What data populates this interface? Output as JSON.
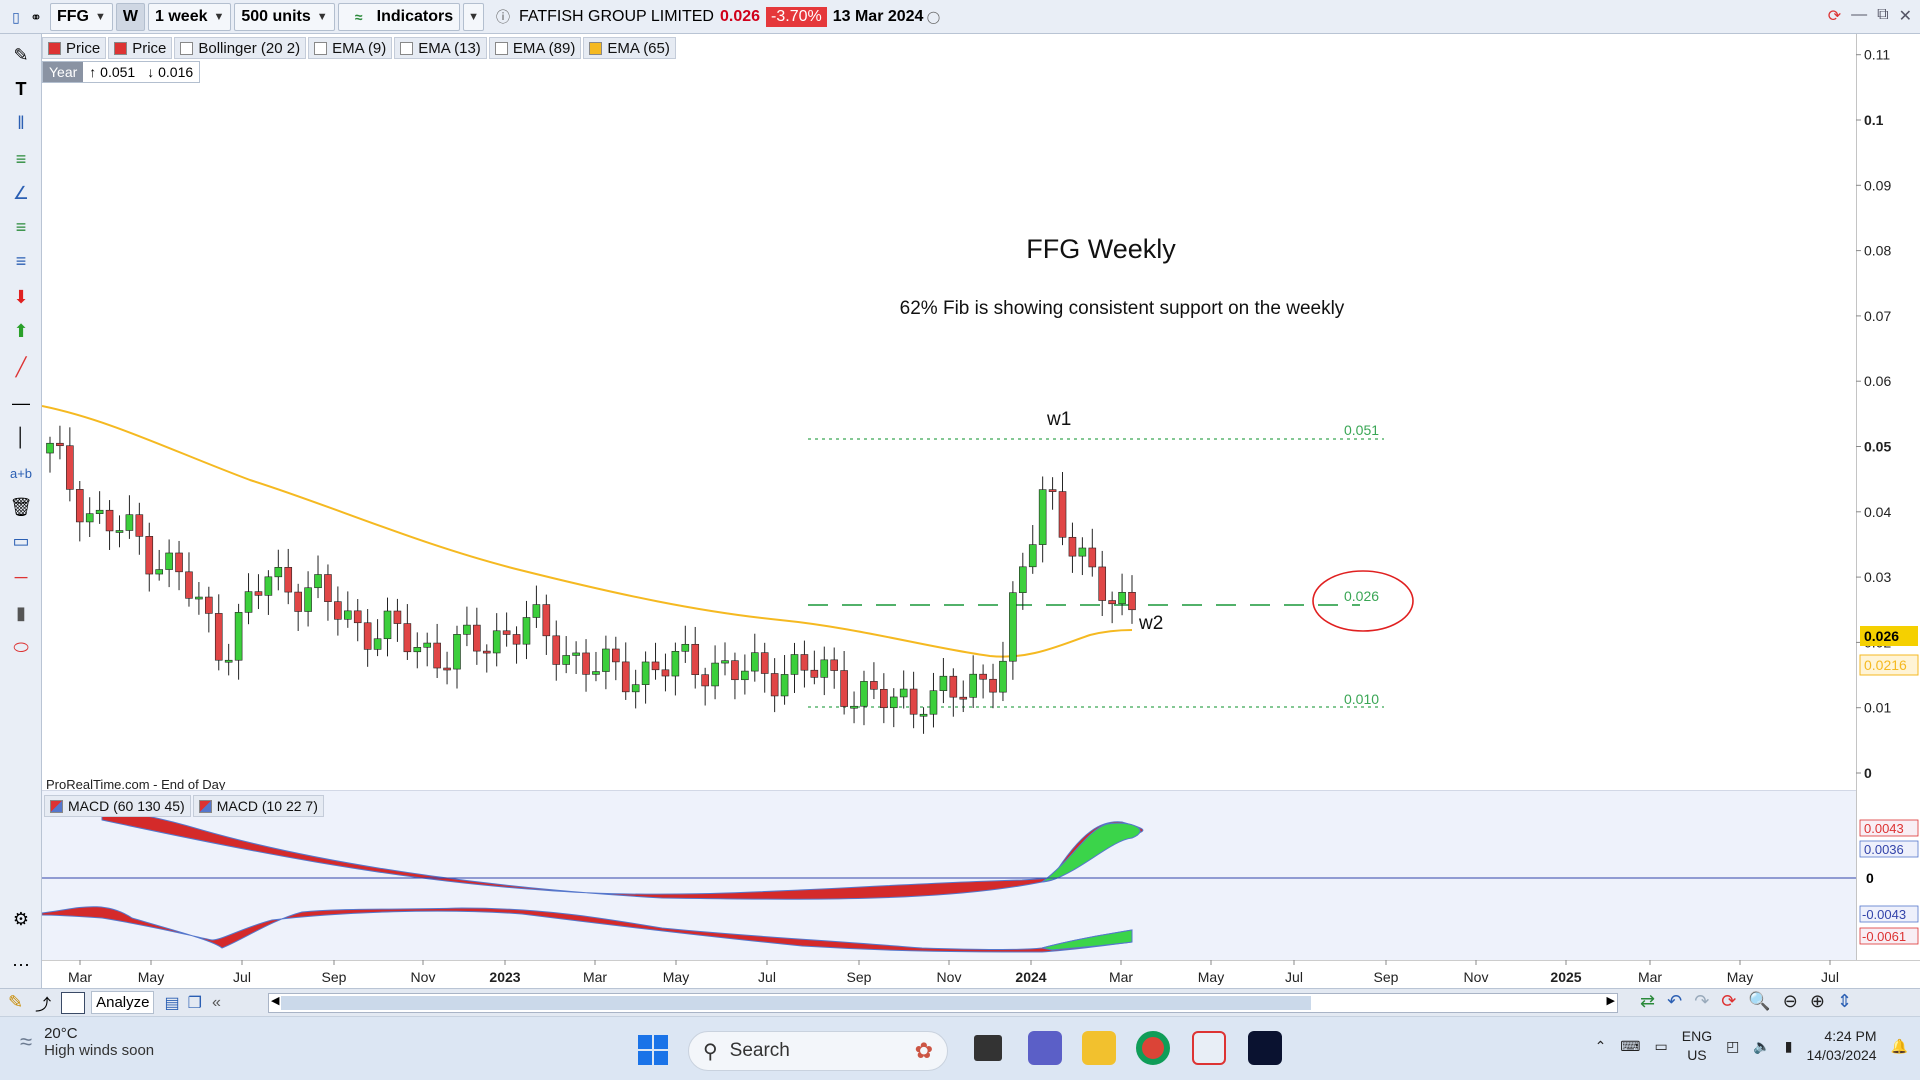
{
  "toolbar": {
    "symbol": "FFG",
    "period_letter": "W",
    "timeframe": "1 week",
    "units": "500 units",
    "indicators_label": "Indicators",
    "instrument_name": "FATFISH GROUP LIMITED",
    "last_price": "0.026",
    "change_pct": "-3.70%",
    "date": "13 Mar 2024"
  },
  "legend": {
    "items": [
      "Price",
      "Price",
      "Bollinger (20 2)",
      "EMA (9)",
      "EMA (13)",
      "EMA (89)",
      "EMA (65)"
    ],
    "colors": [
      "#d33",
      "#d33",
      "#ffffff",
      "#ffffff",
      "#ffffff",
      "#ffffff",
      "#f5b921"
    ]
  },
  "year_box": {
    "label": "Year",
    "high": "↑ 0.051",
    "low": "↓ 0.016"
  },
  "annotations": {
    "title": "FFG Weekly",
    "subtitle": "62% Fib is showing consistent support on the weekly",
    "w1": "w1",
    "w2": "w2",
    "fib_high": "0.051",
    "fib_mid": "0.026",
    "fib_low": "0.010",
    "source": "ProRealTime.com - End of Day"
  },
  "price_axis": {
    "ticks": [
      "0.11",
      "0.1",
      "0.09",
      "0.08",
      "0.07",
      "0.06",
      "0.05",
      "0.04",
      "0.03",
      "0.02",
      "0.01",
      "0"
    ],
    "current_price": "0.026",
    "ema_value": "0.0216"
  },
  "macd": {
    "legend": [
      "MACD (60 130 45)",
      "MACD (10 22 7)"
    ],
    "axis_values": [
      "0.0043",
      "0.0036",
      "0",
      "-0.0043",
      "-0.0061"
    ]
  },
  "time_axis": {
    "labels": [
      "Mar",
      "May",
      "Jul",
      "Sep",
      "Nov",
      "2023",
      "Mar",
      "May",
      "Jul",
      "Sep",
      "Nov",
      "2024",
      "Mar",
      "May",
      "Jul",
      "Sep",
      "Nov",
      "2025",
      "Mar",
      "May",
      "Jul"
    ]
  },
  "bottom": {
    "analyze_label": "Analyze"
  },
  "taskbar": {
    "temperature": "20°C",
    "weather_desc": "High winds soon",
    "search_placeholder": "Search",
    "lang_top": "ENG",
    "lang_bottom": "US",
    "time": "4:24 PM",
    "date": "14/03/2024"
  },
  "chart_data": {
    "type": "candlestick",
    "title": "FFG Weekly",
    "subtitle": "62% Fib is showing consistent support on the weekly",
    "ylim": [
      0,
      0.11
    ],
    "x_range": [
      "2022-03",
      "2025-07"
    ],
    "levels": [
      {
        "label": "0.051",
        "value": 0.051,
        "style": "dotted",
        "color": "#3aa655"
      },
      {
        "label": "0.026",
        "value": 0.026,
        "style": "dashed",
        "color": "#3aa655"
      },
      {
        "label": "0.010",
        "value": 0.01,
        "style": "dotted",
        "color": "#3aa655"
      }
    ],
    "close_series": [
      [
        "2022-02",
        0.049
      ],
      [
        "2022-03",
        0.039
      ],
      [
        "2022-04",
        0.036
      ],
      [
        "2022-05",
        0.03
      ],
      [
        "2022-06",
        0.019
      ],
      [
        "2022-07",
        0.03
      ],
      [
        "2022-08",
        0.028
      ],
      [
        "2022-09",
        0.023
      ],
      [
        "2022-10",
        0.021
      ],
      [
        "2022-11",
        0.018
      ],
      [
        "2022-12",
        0.02
      ],
      [
        "2023-01",
        0.023
      ],
      [
        "2023-02",
        0.018
      ],
      [
        "2023-03",
        0.015
      ],
      [
        "2023-04",
        0.016
      ],
      [
        "2023-05",
        0.017
      ],
      [
        "2023-06",
        0.015
      ],
      [
        "2023-07",
        0.016
      ],
      [
        "2023-08",
        0.015
      ],
      [
        "2023-09",
        0.011
      ],
      [
        "2023-10",
        0.011
      ],
      [
        "2023-11",
        0.012
      ],
      [
        "2023-12",
        0.017
      ],
      [
        "2024-01",
        0.045
      ],
      [
        "2024-02",
        0.029
      ],
      [
        "2024-03",
        0.026
      ]
    ],
    "ema_65": [
      [
        "2022-02",
        0.056
      ],
      [
        "2022-06",
        0.047
      ],
      [
        "2022-10",
        0.042
      ],
      [
        "2023-02",
        0.032
      ],
      [
        "2023-06",
        0.027
      ],
      [
        "2023-10",
        0.021
      ],
      [
        "2024-01",
        0.018
      ],
      [
        "2024-03",
        0.0216
      ]
    ],
    "macd_series": [
      {
        "name": "MACD (60 130 45)",
        "last": 0.0043
      },
      {
        "name": "MACD (10 22 7)",
        "last": -0.0061
      }
    ],
    "current_price": 0.026,
    "year_high": 0.051,
    "year_low": 0.016
  }
}
